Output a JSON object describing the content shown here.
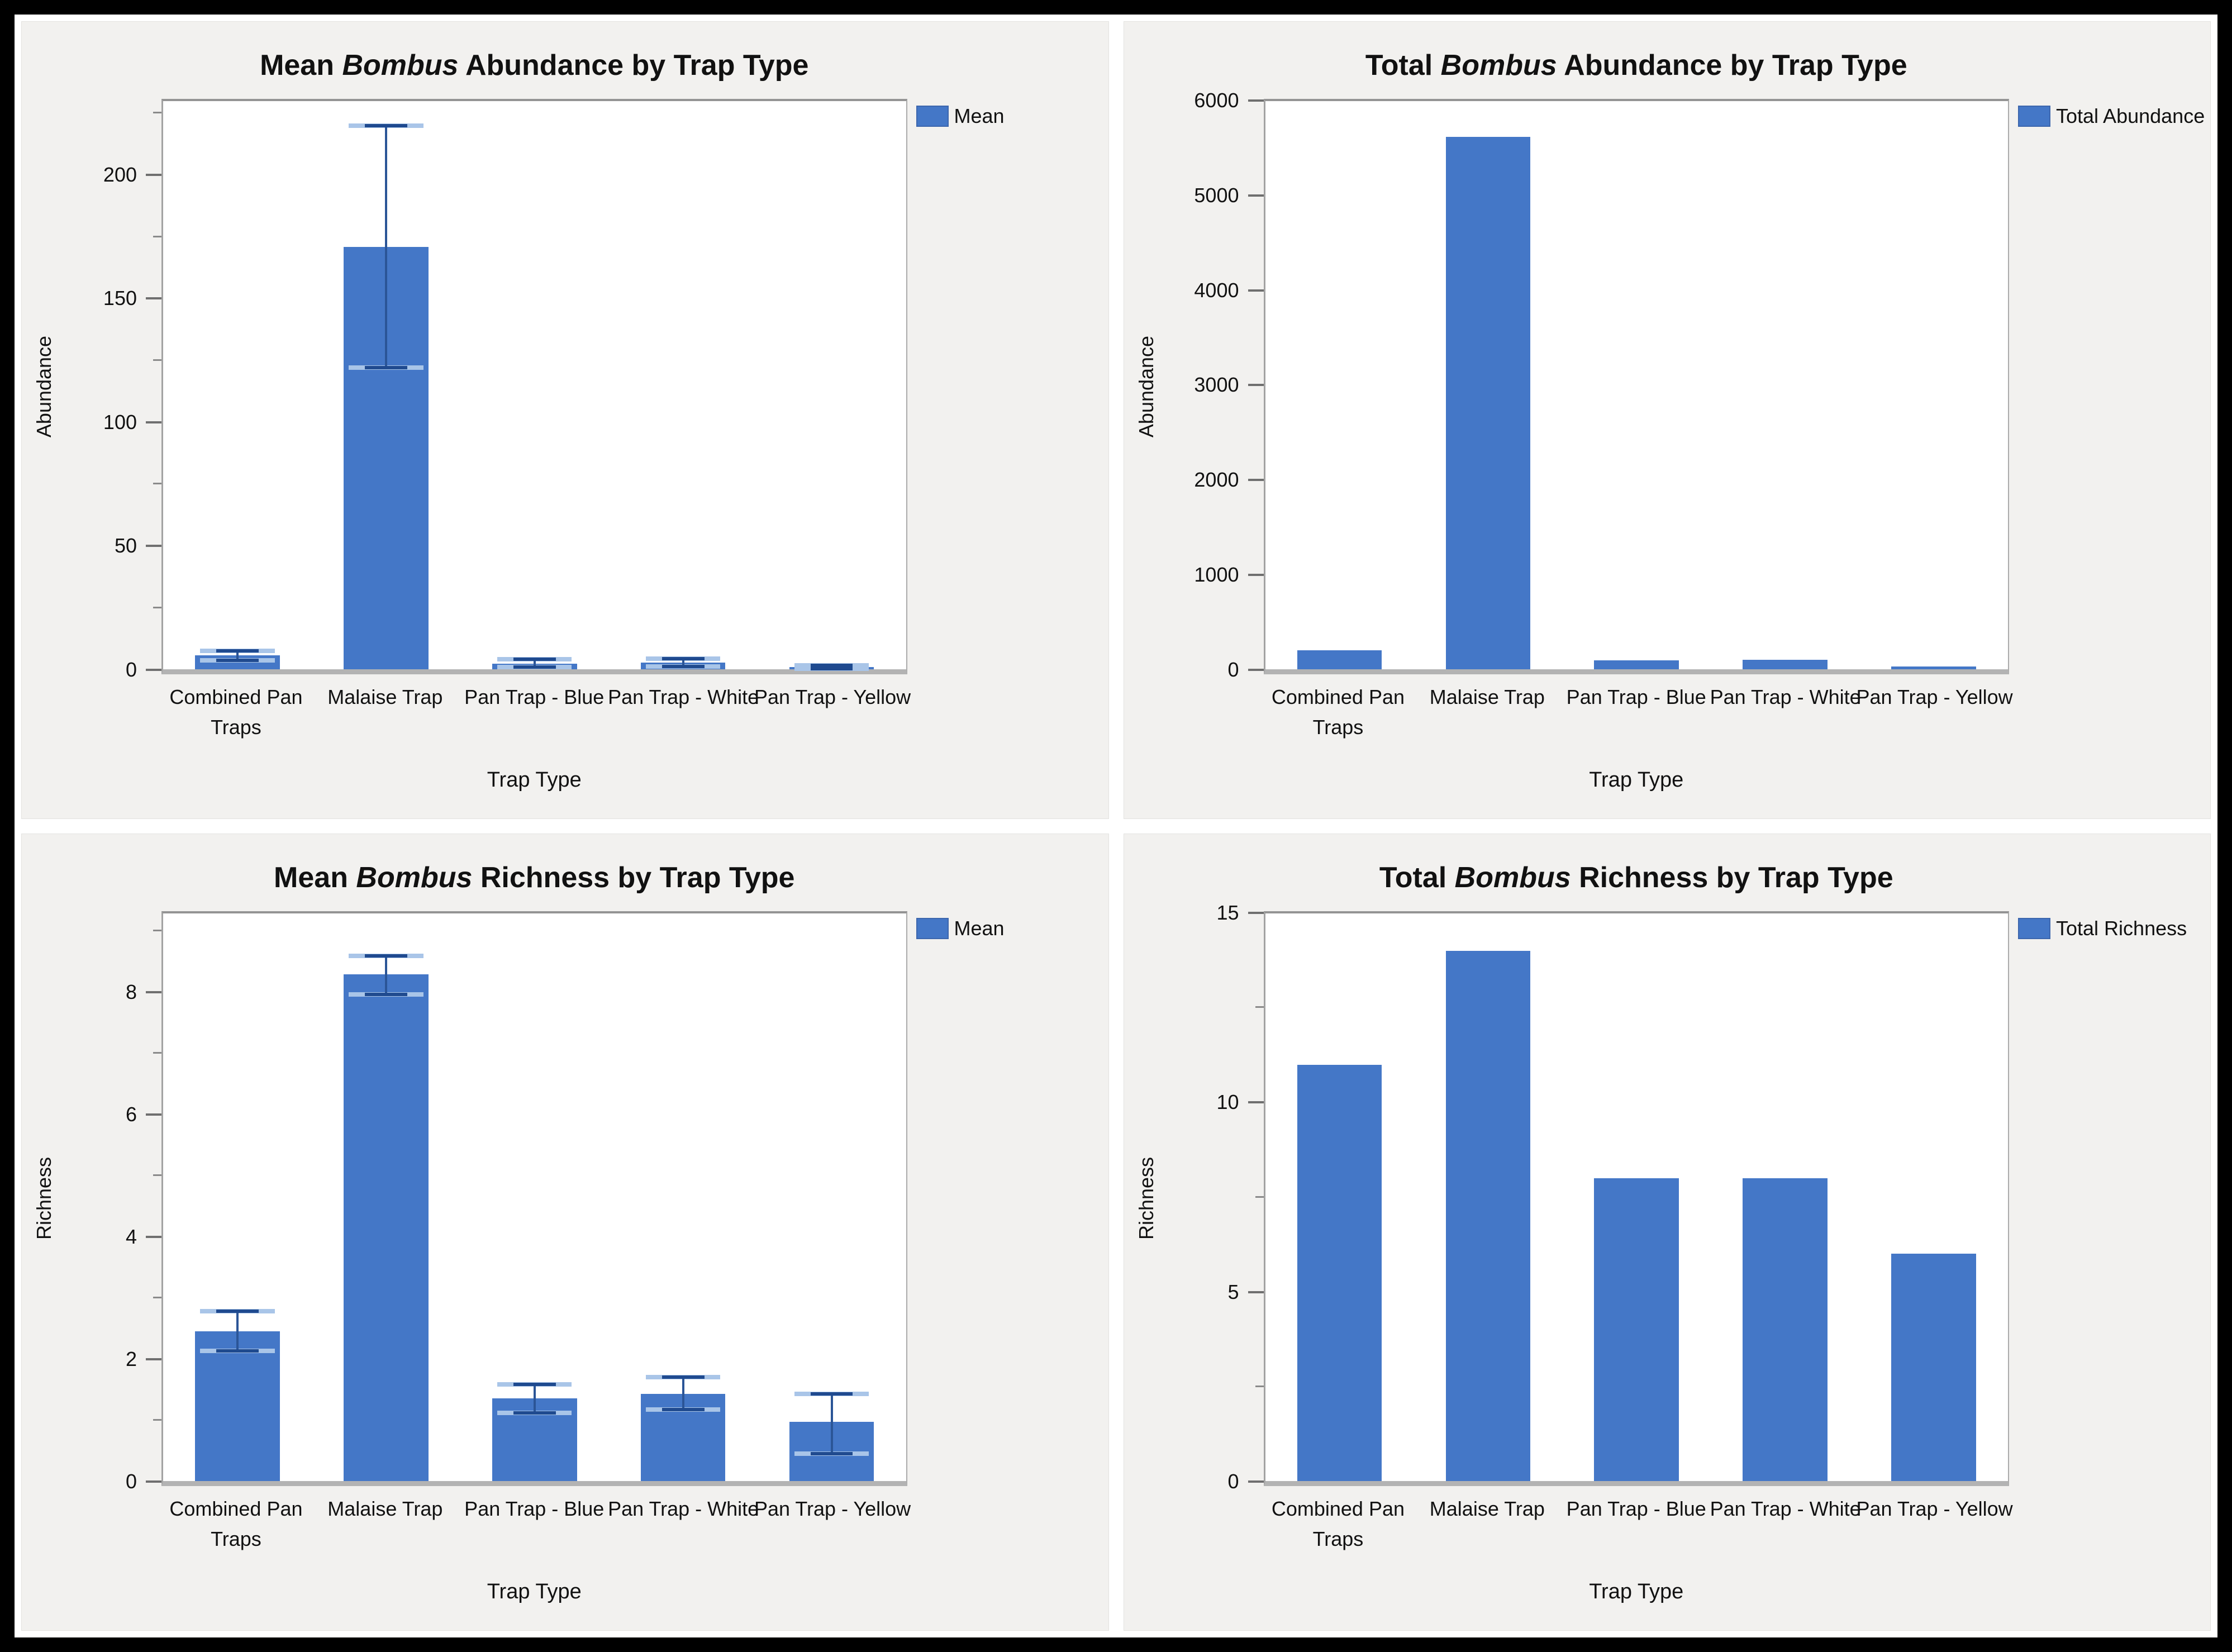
{
  "page": {
    "background": "#ffffff",
    "frame_color": "#000000",
    "panel_background": "#f2f1ef"
  },
  "colors": {
    "bar": "#4477C7",
    "error_line": "#2b5597",
    "error_cap_dark": "#1f4a8f",
    "error_cap_light": "#a9c5e8",
    "plot_border": "#9b9b9b",
    "axis_line": "#b3b3b3",
    "text": "#111111"
  },
  "chart_data": [
    {
      "id": "mean-abundance",
      "type": "bar",
      "title_prefix": "Mean ",
      "title_italic": "Bombus",
      "title_suffix": " Abundance by Trap Type",
      "legend": "Mean",
      "legend_position": "right-top",
      "xlabel": "Trap Type",
      "ylabel": "Abundance",
      "ylim": [
        0,
        230
      ],
      "yticks": [
        0,
        50,
        100,
        150,
        200
      ],
      "yminor": [
        25,
        75,
        125,
        175,
        225
      ],
      "grid": false,
      "categories": [
        "Combined Pan Traps",
        "Malaise Trap",
        "Pan Trap - Blue",
        "Pan Trap - White",
        "Pan Trap - Yellow"
      ],
      "tick_lines": [
        [
          "Combined Pan",
          "Traps"
        ],
        [
          "Malaise Trap"
        ],
        [
          "Pan Trap - Blue"
        ],
        [
          "Pan Trap - White"
        ],
        [
          "Pan Trap - Yellow"
        ]
      ],
      "values": [
        5.5,
        171,
        2.2,
        2.6,
        0.8
      ],
      "error_low": [
        3.4,
        122,
        0.9,
        1.1,
        0.2
      ],
      "error_high": [
        7.4,
        220,
        3.9,
        4.2,
        1.5
      ]
    },
    {
      "id": "total-abundance",
      "type": "bar",
      "title_prefix": "Total ",
      "title_italic": "Bombus",
      "title_suffix": " Abundance by Trap Type",
      "legend": "Total Abundance",
      "legend_position": "right-top",
      "xlabel": "Trap Type",
      "ylabel": "Abundance",
      "ylim": [
        0,
        6000
      ],
      "yticks": [
        0,
        1000,
        2000,
        3000,
        4000,
        5000,
        6000
      ],
      "yminor": [],
      "grid": false,
      "categories": [
        "Combined Pan Traps",
        "Malaise Trap",
        "Pan Trap - Blue",
        "Pan Trap - White",
        "Pan Trap - Yellow"
      ],
      "tick_lines": [
        [
          "Combined Pan",
          "Traps"
        ],
        [
          "Malaise Trap"
        ],
        [
          "Pan Trap - Blue"
        ],
        [
          "Pan Trap - White"
        ],
        [
          "Pan Trap - Yellow"
        ]
      ],
      "values": [
        195,
        5620,
        90,
        95,
        25
      ],
      "error_low": null,
      "error_high": null
    },
    {
      "id": "mean-richness",
      "type": "bar",
      "title_prefix": "Mean ",
      "title_italic": "Bombus",
      "title_suffix": " Richness by Trap Type",
      "legend": "Mean",
      "legend_position": "right-top",
      "xlabel": "Trap Type",
      "ylabel": "Richness",
      "ylim": [
        0,
        9.3
      ],
      "yticks": [
        0,
        2,
        4,
        6,
        8
      ],
      "yminor": [
        1,
        3,
        5,
        7,
        9
      ],
      "grid": false,
      "categories": [
        "Combined Pan Traps",
        "Malaise Trap",
        "Pan Trap - Blue",
        "Pan Trap - White",
        "Pan Trap - Yellow"
      ],
      "tick_lines": [
        [
          "Combined Pan",
          "Traps"
        ],
        [
          "Malaise Trap"
        ],
        [
          "Pan Trap - Blue"
        ],
        [
          "Pan Trap - White"
        ],
        [
          "Pan Trap - Yellow"
        ]
      ],
      "values": [
        2.45,
        8.3,
        1.35,
        1.43,
        0.97
      ],
      "error_low": [
        2.13,
        7.97,
        1.12,
        1.17,
        0.45
      ],
      "error_high": [
        2.78,
        8.6,
        1.58,
        1.7,
        1.43
      ]
    },
    {
      "id": "total-richness",
      "type": "bar",
      "title_prefix": "Total ",
      "title_italic": "Bombus",
      "title_suffix": " Richness by Trap Type",
      "legend": "Total Richness",
      "legend_position": "right-top",
      "xlabel": "Trap Type",
      "ylabel": "Richness",
      "ylim": [
        0,
        15
      ],
      "yticks": [
        0,
        5,
        10,
        15
      ],
      "yminor": [
        2.5,
        7.5,
        12.5
      ],
      "grid": false,
      "categories": [
        "Combined Pan Traps",
        "Malaise Trap",
        "Pan Trap - Blue",
        "Pan Trap - White",
        "Pan Trap - Yellow"
      ],
      "tick_lines": [
        [
          "Combined Pan",
          "Traps"
        ],
        [
          "Malaise Trap"
        ],
        [
          "Pan Trap - Blue"
        ],
        [
          "Pan Trap - White"
        ],
        [
          "Pan Trap - Yellow"
        ]
      ],
      "values": [
        11,
        14,
        8,
        8,
        6
      ],
      "error_low": null,
      "error_high": null
    }
  ]
}
